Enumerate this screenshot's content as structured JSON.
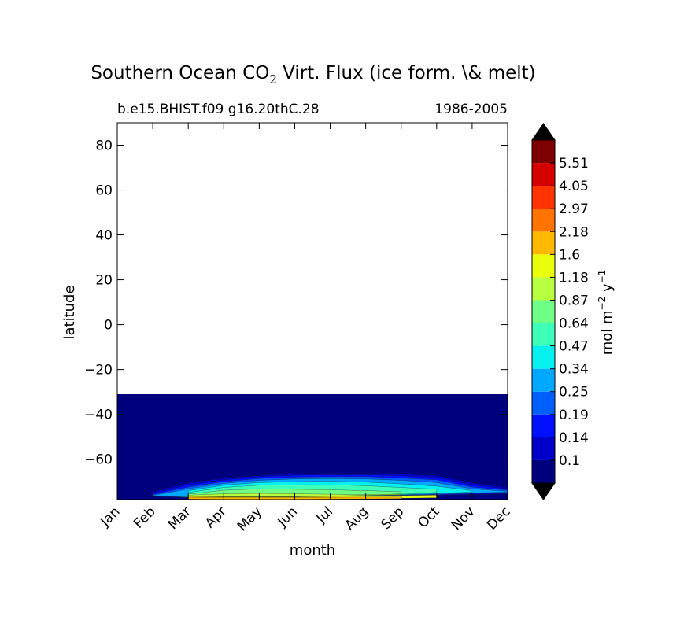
{
  "chart_data": {
    "type": "heatmap",
    "title": {
      "prefix": "Southern Ocean CO",
      "subscript": "2",
      "suffix": " Virt. Flux (ice form. \\& melt)"
    },
    "subtitle_left": "b.e15.BHIST.f09 g16.20thC.28",
    "subtitle_right": "1986-2005",
    "xlabel": "month",
    "ylabel": "latitude",
    "x_categories": [
      "Jan",
      "Feb",
      "Mar",
      "Apr",
      "May",
      "Jun",
      "Jul",
      "Aug",
      "Sep",
      "Oct",
      "Nov",
      "Dec"
    ],
    "y_ticks": [
      80,
      60,
      40,
      20,
      0,
      -20,
      -40,
      -60
    ],
    "y_tick_labels": [
      "80",
      "60",
      "40",
      "20",
      "0",
      "−20",
      "−40",
      "−60"
    ],
    "ylim": [
      -78,
      90
    ],
    "data_region_lat_top": -31,
    "colorbar": {
      "levels": [
        "0.1",
        "0.14",
        "0.19",
        "0.25",
        "0.34",
        "0.47",
        "0.64",
        "0.87",
        "1.18",
        "1.6",
        "2.18",
        "2.97",
        "4.05",
        "5.51"
      ],
      "colors": [
        "#00007f",
        "#0000c8",
        "#0010ff",
        "#0060ff",
        "#00a8ff",
        "#06f0f0",
        "#3cffba",
        "#70ff86",
        "#b8ff40",
        "#eaff0c",
        "#ffb800",
        "#ff7300",
        "#ff3400",
        "#d50000",
        "#7f0000"
      ],
      "extend_low_color": "#000000",
      "extend_high_color": "#000000",
      "label": {
        "base": "mol m",
        "exp1": "−2",
        "mid": " y",
        "exp2": "−1"
      }
    },
    "contour_bands": [
      {
        "color": "#0000c8",
        "top": [
          null,
          -74.5,
          -70.5,
          -68.5,
          -67.2,
          -66.6,
          -66.4,
          -66.4,
          -66.6,
          -67.2,
          -70.5,
          -72.5
        ],
        "bottom": [
          null,
          -76.8,
          -77.2,
          -77.3,
          -77.3,
          -77.2,
          -77.0,
          -76.8,
          -76.5,
          -76.2,
          -75.8,
          -75.5
        ]
      },
      {
        "color": "#0010ff",
        "top": [
          null,
          -75.2,
          -71.4,
          -69.2,
          -67.8,
          -67.2,
          -67.0,
          -67.0,
          -67.4,
          -68.0,
          -71.5,
          -73.2
        ],
        "bottom": [
          null,
          -76.6,
          -77.1,
          -77.2,
          -77.2,
          -77.1,
          -76.9,
          -76.7,
          -76.4,
          -76.0,
          -75.6,
          -75.2
        ]
      },
      {
        "color": "#0060ff",
        "top": [
          null,
          -75.8,
          -72.4,
          -70.0,
          -68.6,
          -68.0,
          -67.8,
          -67.8,
          -68.4,
          -69.2,
          -72.4,
          -73.8
        ],
        "bottom": [
          null,
          -76.4,
          -77.0,
          -77.1,
          -77.1,
          -77.0,
          -76.8,
          -76.6,
          -76.2,
          -75.8,
          -75.3,
          -74.9
        ]
      },
      {
        "color": "#00a8ff",
        "top": [
          null,
          -76.2,
          -73.2,
          -70.8,
          -69.4,
          -68.8,
          -68.6,
          -68.8,
          -69.4,
          -70.4,
          -73.2,
          -74.3
        ],
        "bottom": [
          null,
          -76.3,
          -76.9,
          -77.0,
          -77.0,
          -76.9,
          -76.7,
          -76.5,
          -76.0,
          -75.5,
          -75.0,
          -74.6
        ]
      },
      {
        "color": "#06f0f0",
        "top": [
          null,
          null,
          -74.0,
          -71.6,
          -70.4,
          -70.0,
          -69.8,
          -70.2,
          -71.0,
          -72.0,
          -74.0,
          null
        ],
        "bottom": [
          null,
          null,
          -76.8,
          -76.9,
          -76.9,
          -76.8,
          -76.6,
          -76.3,
          -75.8,
          -75.2,
          -74.6,
          null
        ]
      },
      {
        "color": "#3cffba",
        "top": [
          null,
          null,
          -74.8,
          -72.6,
          -71.6,
          -71.4,
          -71.4,
          -71.8,
          -72.6,
          -73.4,
          null,
          null
        ],
        "bottom": [
          null,
          null,
          -76.7,
          -76.8,
          -76.8,
          -76.7,
          -76.5,
          -76.2,
          -75.6,
          -74.8,
          null,
          null
        ]
      },
      {
        "color": "#70ff86",
        "top": [
          null,
          null,
          -75.6,
          -73.8,
          -73.2,
          -73.4,
          -73.6,
          -74.0,
          -74.4,
          null,
          null,
          null
        ],
        "bottom": [
          null,
          null,
          -76.6,
          -76.7,
          -76.7,
          -76.6,
          -76.4,
          -76.0,
          -75.4,
          null,
          null,
          null
        ]
      },
      {
        "color": "#b8ff40",
        "top": [
          null,
          null,
          -76.0,
          -75.4,
          -75.2,
          -75.4,
          -75.6,
          -75.8,
          -75.6,
          null,
          null,
          null
        ],
        "bottom": [
          null,
          null,
          -76.6,
          -76.7,
          -76.7,
          -76.6,
          -76.4,
          -76.1,
          -75.9,
          null,
          null,
          null
        ]
      },
      {
        "color": "#eaff0c",
        "top": [
          null,
          null,
          -76.6,
          -76.8,
          -76.8,
          -76.8,
          -76.6,
          -76.4,
          -76.2,
          -76.0,
          null,
          null
        ],
        "bottom": [
          null,
          null,
          -77.6,
          -77.8,
          -77.8,
          -77.8,
          -77.7,
          -77.6,
          -77.4,
          -77.2,
          null,
          null
        ]
      },
      {
        "color": "#ffb800",
        "top": [
          null,
          null,
          -77.0,
          -77.1,
          -77.1,
          -77.1,
          -77.0,
          -76.9,
          -76.9,
          null,
          null,
          null
        ],
        "bottom": [
          null,
          null,
          -77.8,
          -77.9,
          -77.9,
          -77.9,
          -77.8,
          -77.7,
          -77.6,
          null,
          null,
          null
        ]
      }
    ]
  }
}
